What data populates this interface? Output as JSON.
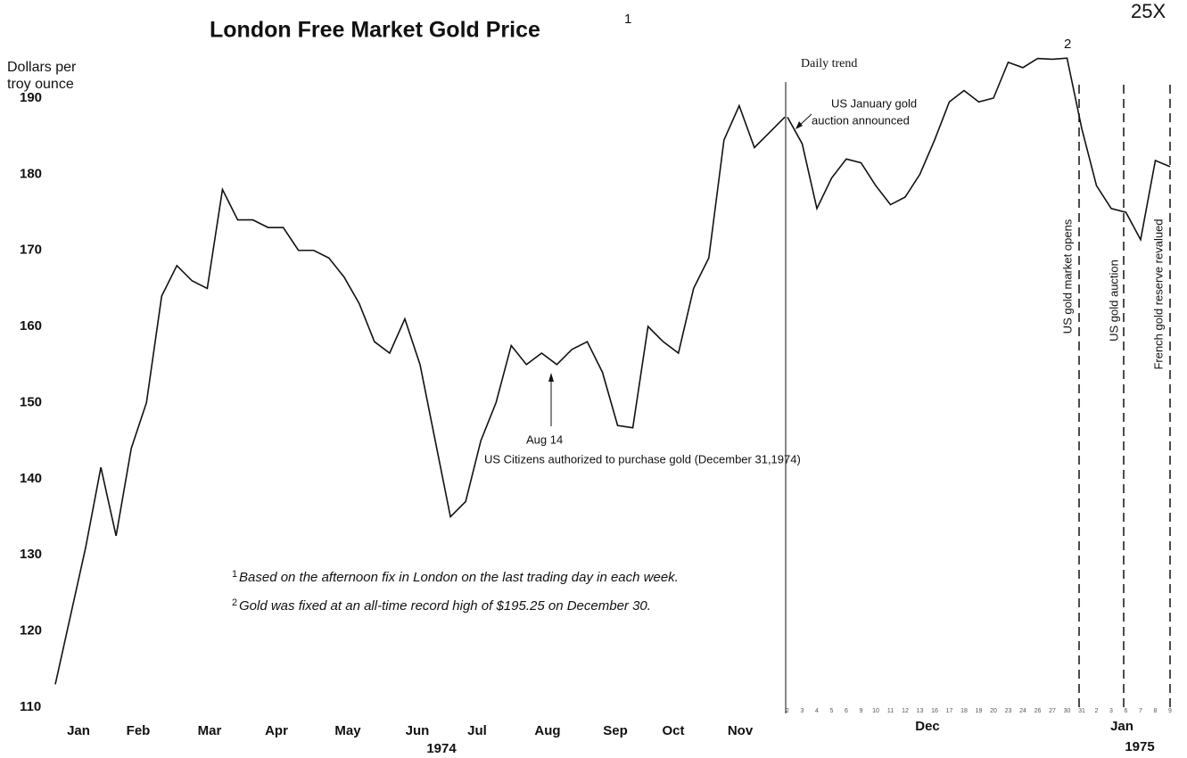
{
  "chart_data": {
    "type": "line",
    "title": "London Free Market Gold Price",
    "title_note": "1",
    "corner_mark": "25X",
    "y_label": [
      "Dollars per",
      "troy ounce"
    ],
    "ylim": [
      110,
      197
    ],
    "yticks": [
      110,
      120,
      130,
      140,
      150,
      160,
      170,
      180,
      190
    ],
    "color": "#111111",
    "years": [
      "1974",
      "1975"
    ],
    "weekly": {
      "months": [
        "Jan",
        "Feb",
        "Mar",
        "Apr",
        "May",
        "Jun",
        "Jul",
        "Aug",
        "Sep",
        "Oct",
        "Nov"
      ],
      "values": [
        113,
        122,
        131,
        141.5,
        132.5,
        144,
        150,
        164,
        168,
        166,
        165,
        178,
        174,
        174,
        173,
        173,
        170,
        170,
        169,
        166.5,
        163,
        158,
        156.5,
        161,
        155,
        145,
        135,
        137,
        145,
        150,
        157.5,
        155,
        156.5,
        155,
        157,
        158,
        154,
        147,
        146.7,
        160,
        158,
        156.5,
        165,
        169,
        184.5,
        189,
        183.5,
        185.5,
        187.5
      ]
    },
    "daily": {
      "label": "Daily trend",
      "months": [
        "Dec",
        "Jan"
      ],
      "days": [
        "2",
        "3",
        "4",
        "5",
        "6",
        "9",
        "10",
        "11",
        "12",
        "13",
        "16",
        "17",
        "18",
        "19",
        "20",
        "23",
        "24",
        "26",
        "27",
        "30",
        "31",
        "2",
        "3",
        "6",
        "7",
        "8",
        "9"
      ],
      "values": [
        187.5,
        184,
        175.5,
        179.5,
        182,
        181.5,
        178.5,
        176,
        177,
        180,
        184.5,
        189.5,
        191,
        189.5,
        190,
        194.7,
        194,
        195.2,
        195.1,
        195.25,
        186,
        178.5,
        175.5,
        175,
        171.4,
        181.8,
        181
      ]
    },
    "annotations": {
      "aug14": "Aug 14",
      "citizens": "US Citizens authorized to purchase gold (December 31,1974)",
      "auction_announced": [
        "US January gold",
        "auction announced"
      ],
      "record_mark": "2",
      "market_opens": "US gold market opens",
      "gold_auction": "US gold auction",
      "french": "French gold reserve revalued"
    },
    "footnotes": [
      {
        "mark": "1",
        "text": "Based on the afternoon fix in London on the last trading day in each week."
      },
      {
        "mark": "2",
        "text": "Gold was fixed at an all-time record high of $195.25 on December 30."
      }
    ]
  }
}
